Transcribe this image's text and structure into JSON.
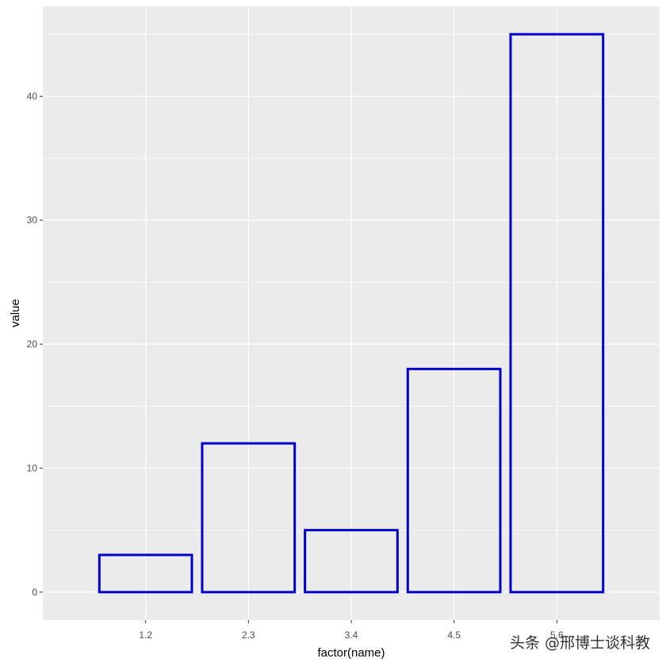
{
  "chart_data": {
    "type": "bar",
    "xlabel": "factor(name)",
    "ylabel": "value",
    "categories": [
      "1.2",
      "2.3",
      "3.4",
      "4.5",
      "5.6"
    ],
    "values": [
      3,
      12,
      5,
      18,
      45
    ],
    "ylim": [
      -2.25,
      47.25
    ],
    "yticks": [
      0,
      10,
      20,
      30,
      40
    ],
    "grid": true,
    "bar_fill": "none",
    "bar_outline_color": "#0000CD",
    "panel_background": "#EBEBEB",
    "gridline_color": "#FFFFFF"
  },
  "watermark": "头条 @邢博士谈科教"
}
